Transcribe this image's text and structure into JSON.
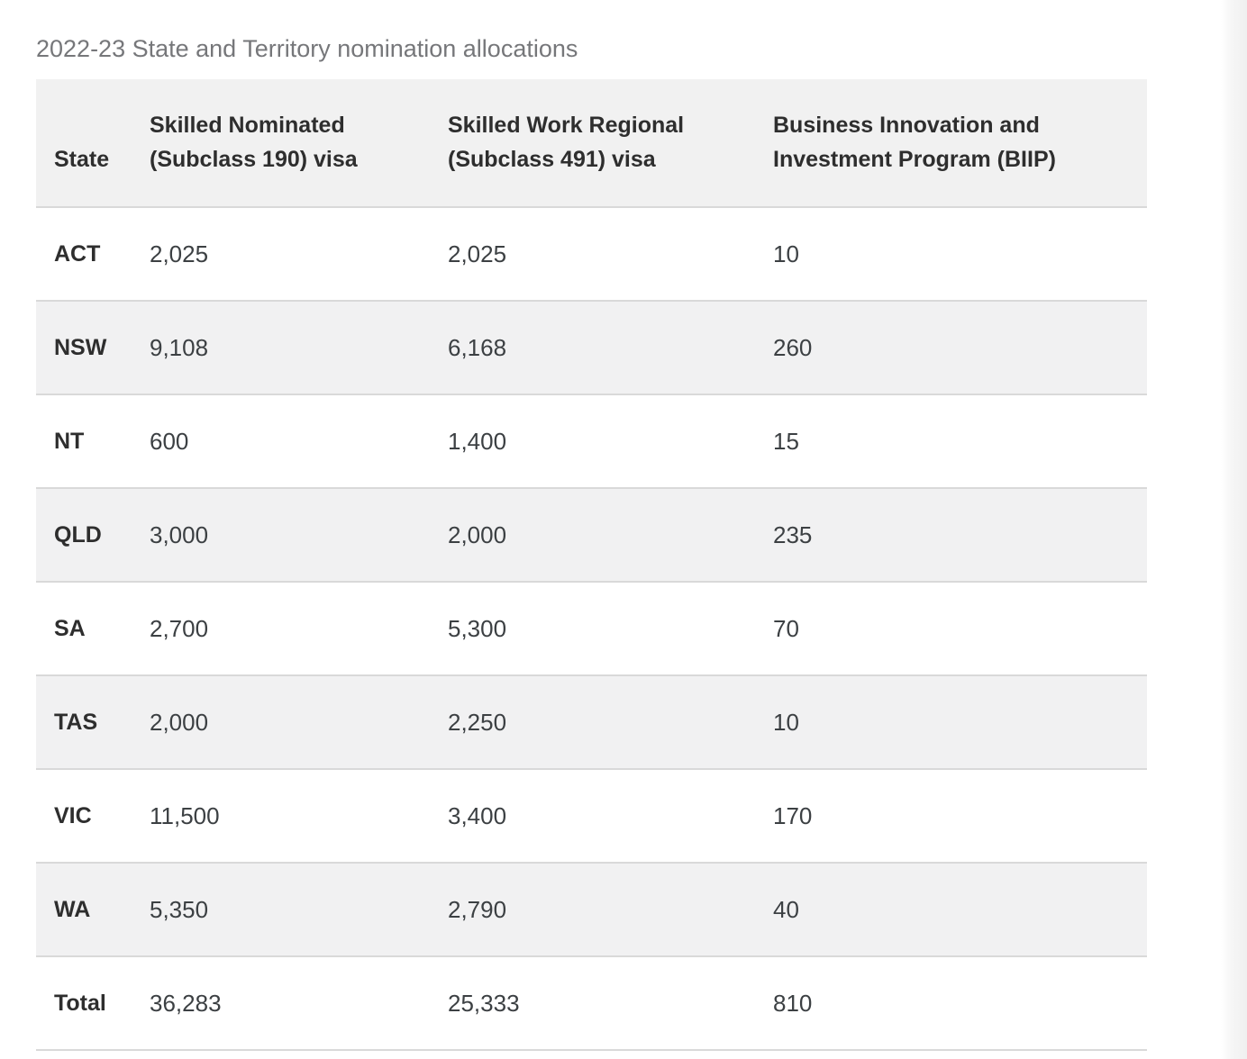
{
  "page": {
    "title": "2022-23 State and Territory nomination allocations"
  },
  "table": {
    "columns": [
      "State",
      "Skilled Nominated (Subclass 190) visa",
      "Skilled Work Regional (Subclass 491) visa",
      "Business Innovation and Investment Program (BIIP)"
    ],
    "rows": [
      {
        "state": "ACT",
        "subclass_190": "2,025",
        "subclass_491": "2,025",
        "biip": "10"
      },
      {
        "state": "NSW",
        "subclass_190": "9,108",
        "subclass_491": "6,168",
        "biip": "260"
      },
      {
        "state": "NT",
        "subclass_190": "600",
        "subclass_491": "1,400",
        "biip": "15"
      },
      {
        "state": "QLD",
        "subclass_190": "3,000",
        "subclass_491": "2,000",
        "biip": "235"
      },
      {
        "state": "SA",
        "subclass_190": "2,700",
        "subclass_491": "5,300",
        "biip": "70"
      },
      {
        "state": "TAS",
        "subclass_190": "2,000",
        "subclass_491": "2,250",
        "biip": "10"
      },
      {
        "state": "VIC",
        "subclass_190": "11,500",
        "subclass_491": "3,400",
        "biip": "170"
      },
      {
        "state": "WA",
        "subclass_190": "5,350",
        "subclass_491": "2,790",
        "biip": "40"
      },
      {
        "state": "Total",
        "subclass_190": "36,283",
        "subclass_491": "25,333",
        "biip": "810"
      }
    ]
  },
  "colors": {
    "header_background": "#f1f1f1",
    "striped_row_background": "#f1f1f2",
    "row_border": "#d9d9d9",
    "title_text": "#76777a",
    "header_text": "#2e2e2e",
    "cell_text": "#3c4043"
  }
}
